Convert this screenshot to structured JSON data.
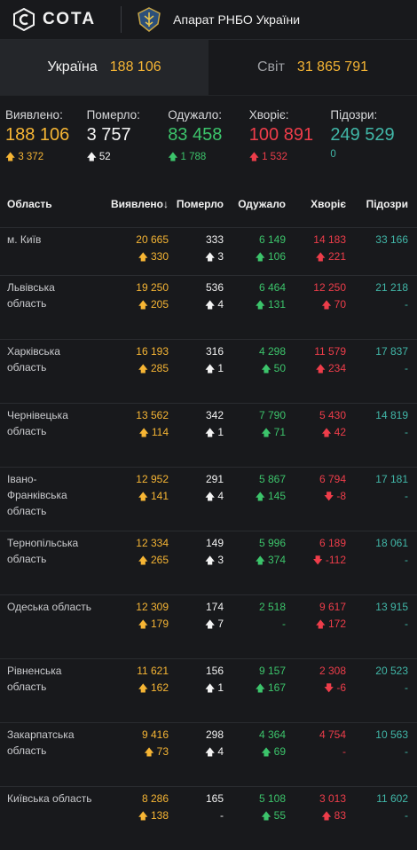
{
  "header": {
    "brand": "СОТА",
    "org": "Апарат РНБО України"
  },
  "tabs": [
    {
      "label": "Україна",
      "value": "188 106"
    },
    {
      "label": "Світ",
      "value": "31 865 791"
    }
  ],
  "summary": [
    {
      "label": "Виявлено:",
      "value": "188 106",
      "delta": "3 372",
      "arrow": "up",
      "color": "yellow"
    },
    {
      "label": "Померло:",
      "value": "3 757",
      "delta": "52",
      "arrow": "up",
      "color": "white"
    },
    {
      "label": "Одужало:",
      "value": "83 458",
      "delta": "1 788",
      "arrow": "up",
      "color": "green"
    },
    {
      "label": "Хворіє:",
      "value": "100 891",
      "delta": "1 532",
      "arrow": "up",
      "color": "red"
    },
    {
      "label": "Підозри:",
      "value": "249 529",
      "delta": "0",
      "arrow": "none",
      "color": "teal"
    }
  ],
  "table": {
    "headers": [
      "Область",
      "Виявлено↓",
      "Померло",
      "Одужало",
      "Хворіє",
      "Підозри"
    ],
    "rows": [
      {
        "region": "м. Київ",
        "c1": "20 665",
        "d1": "330",
        "c2": "333",
        "d2": "3",
        "c3": "6 149",
        "d3": "106",
        "c4": "14 183",
        "d4": "221",
        "c5": "33 166",
        "d5": ""
      },
      {
        "region": "Львівська область",
        "c1": "19 250",
        "d1": "205",
        "c2": "536",
        "d2": "4",
        "c3": "6 464",
        "d3": "131",
        "c4": "12 250",
        "d4": "70",
        "c5": "21 218",
        "d5": "-"
      },
      {
        "region": "Харківська область",
        "c1": "16 193",
        "d1": "285",
        "c2": "316",
        "d2": "1",
        "c3": "4 298",
        "d3": "50",
        "c4": "11 579",
        "d4": "234",
        "c5": "17 837",
        "d5": "-"
      },
      {
        "region": "Чернівецька область",
        "c1": "13 562",
        "d1": "114",
        "c2": "342",
        "d2": "1",
        "c3": "7 790",
        "d3": "71",
        "c4": "5 430",
        "d4": "42",
        "c5": "14 819",
        "d5": "-"
      },
      {
        "region": "Івано-Франківська область",
        "c1": "12 952",
        "d1": "141",
        "c2": "291",
        "d2": "4",
        "c3": "5 867",
        "d3": "145",
        "c4": "6 794",
        "d4": "-8",
        "c5": "17 181",
        "d5": "-"
      },
      {
        "region": "Тернопільська область",
        "c1": "12 334",
        "d1": "265",
        "c2": "149",
        "d2": "3",
        "c3": "5 996",
        "d3": "374",
        "c4": "6 189",
        "d4": "-112",
        "c5": "18 061",
        "d5": "-"
      },
      {
        "region": "Одеська область",
        "c1": "12 309",
        "d1": "179",
        "c2": "174",
        "d2": "7",
        "c3": "2 518",
        "d3": "-",
        "c4": "9 617",
        "d4": "172",
        "c5": "13 915",
        "d5": "-"
      },
      {
        "region": "Рівненська область",
        "c1": "11 621",
        "d1": "162",
        "c2": "156",
        "d2": "1",
        "c3": "9 157",
        "d3": "167",
        "c4": "2 308",
        "d4": "-6",
        "c5": "20 523",
        "d5": "-"
      },
      {
        "region": "Закарпатська область",
        "c1": "9 416",
        "d1": "73",
        "c2": "298",
        "d2": "4",
        "c3": "4 364",
        "d3": "69",
        "c4": "4 754",
        "d4": "-",
        "c5": "10 563",
        "d5": "-"
      },
      {
        "region": "Київська область",
        "c1": "8 286",
        "d1": "138",
        "c2": "165",
        "d2": "-",
        "c3": "5 108",
        "d3": "55",
        "c4": "3 013",
        "d4": "83",
        "c5": "11 602",
        "d5": "-"
      }
    ]
  },
  "colors": {
    "yellow": "#f6b534",
    "white": "#f3f3f3",
    "green": "#3cc46b",
    "red": "#ee3d4a",
    "teal": "#41b7a8",
    "background": "#18191c"
  }
}
